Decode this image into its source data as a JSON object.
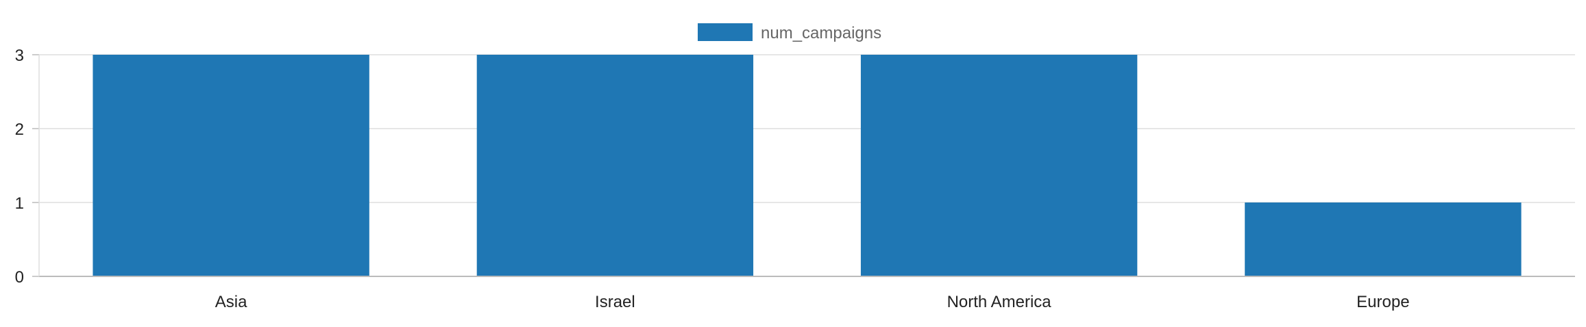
{
  "chart_data": {
    "type": "bar",
    "categories": [
      "Asia",
      "Israel",
      "North America",
      "Europe"
    ],
    "series": [
      {
        "name": "num_campaigns",
        "values": [
          3,
          3,
          3,
          1
        ]
      }
    ],
    "yticks": [
      0,
      1,
      2,
      3
    ],
    "ylim": [
      0,
      3
    ],
    "grid": true,
    "legend": "top-center",
    "colors": {
      "bar": "#1f77b4",
      "grid": "#dddddd",
      "axis": "#bbbbbb"
    }
  }
}
